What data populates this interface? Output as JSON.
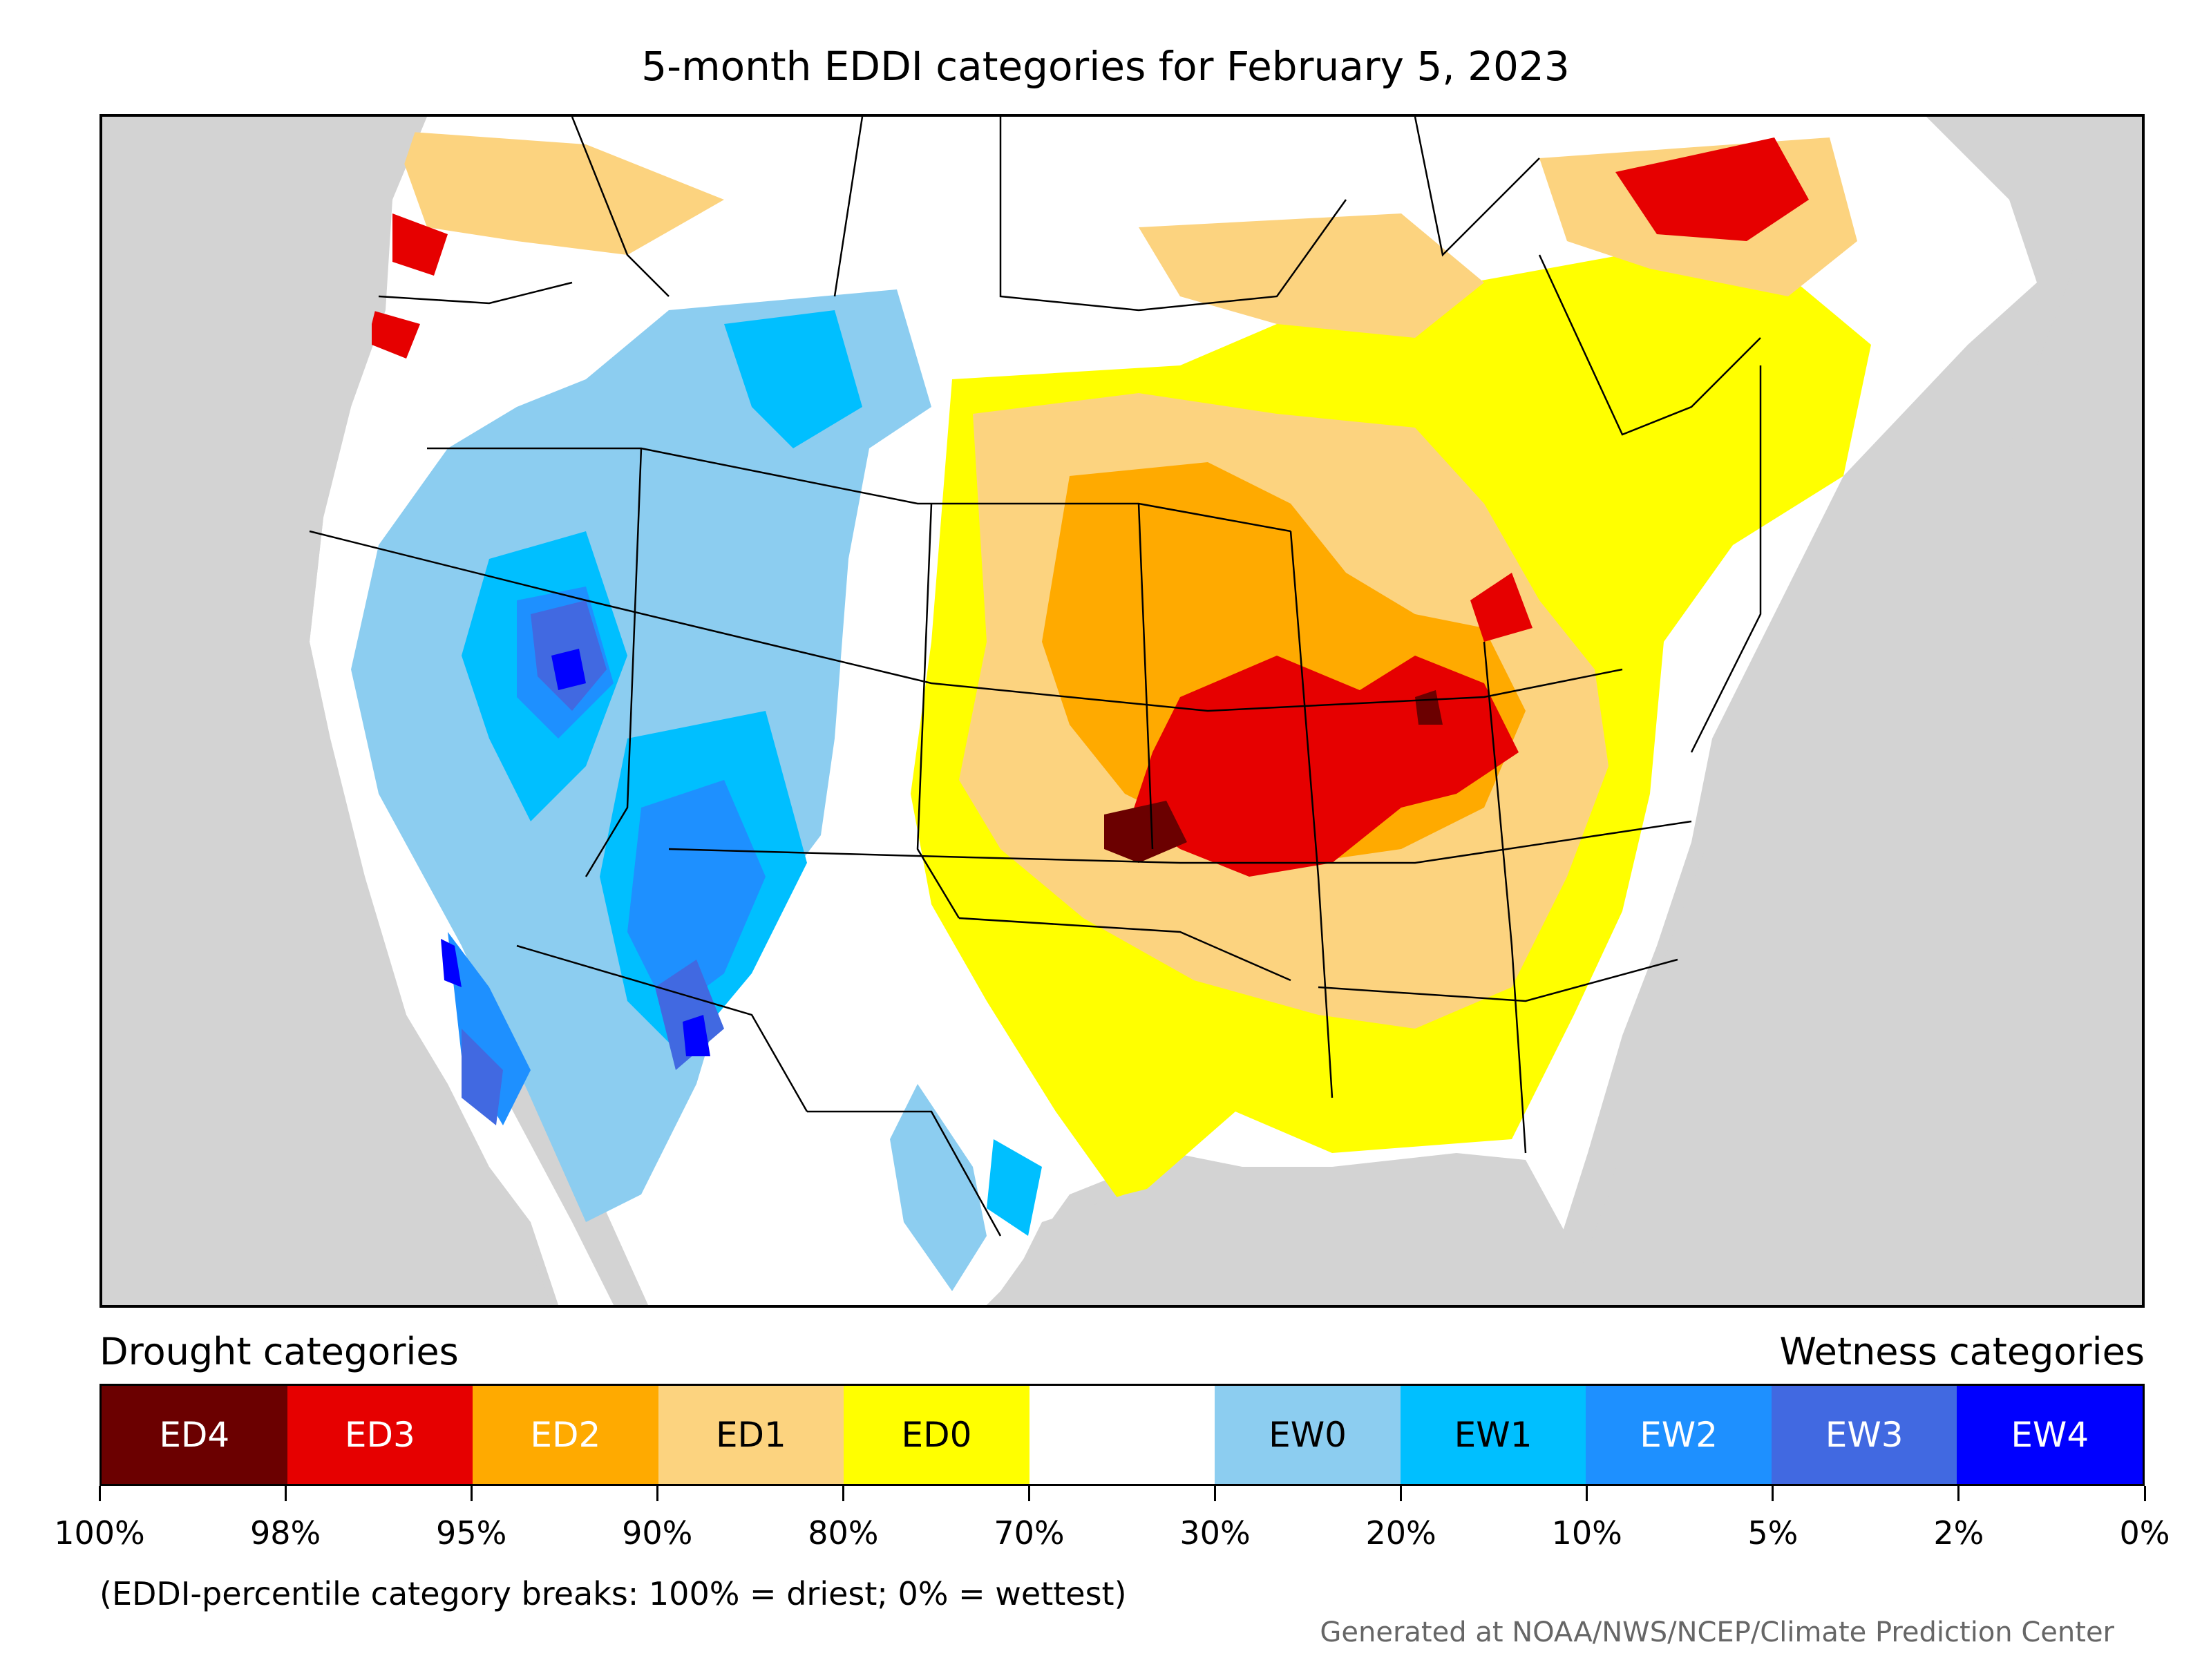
{
  "title": "5-month EDDI categories for February 5, 2023",
  "legend": {
    "drought_heading": "Drought categories",
    "wetness_heading": "Wetness categories",
    "categories": [
      {
        "label": "ED4",
        "color": "#6b0000",
        "text_color": "#ffffff"
      },
      {
        "label": "ED3",
        "color": "#e60000",
        "text_color": "#ffffff"
      },
      {
        "label": "ED2",
        "color": "#ffaa00",
        "text_color": "#ffffff"
      },
      {
        "label": "ED1",
        "color": "#fcd37f",
        "text_color": "#000000"
      },
      {
        "label": "ED0",
        "color": "#ffff00",
        "text_color": "#000000"
      },
      {
        "label": "",
        "color": "#ffffff",
        "text_color": "#000000"
      },
      {
        "label": "EW0",
        "color": "#8ccdf0",
        "text_color": "#000000"
      },
      {
        "label": "EW1",
        "color": "#00bfff",
        "text_color": "#000000"
      },
      {
        "label": "EW2",
        "color": "#1e90ff",
        "text_color": "#ffffff"
      },
      {
        "label": "EW3",
        "color": "#4169e1",
        "text_color": "#ffffff"
      },
      {
        "label": "EW4",
        "color": "#0000ff",
        "text_color": "#ffffff"
      }
    ],
    "tick_labels": [
      "100%",
      "98%",
      "95%",
      "90%",
      "80%",
      "70%",
      "30%",
      "20%",
      "10%",
      "5%",
      "2%",
      "0%"
    ]
  },
  "note": "(EDDI-percentile category breaks: 100% = driest; 0% = wettest)",
  "credit": "Generated at NOAA/NWS/NCEP/Climate Prediction Center",
  "map": {
    "ocean_color": "#d3d3d3",
    "land_color": "#ffffff",
    "boundary_color": "#000000"
  }
}
